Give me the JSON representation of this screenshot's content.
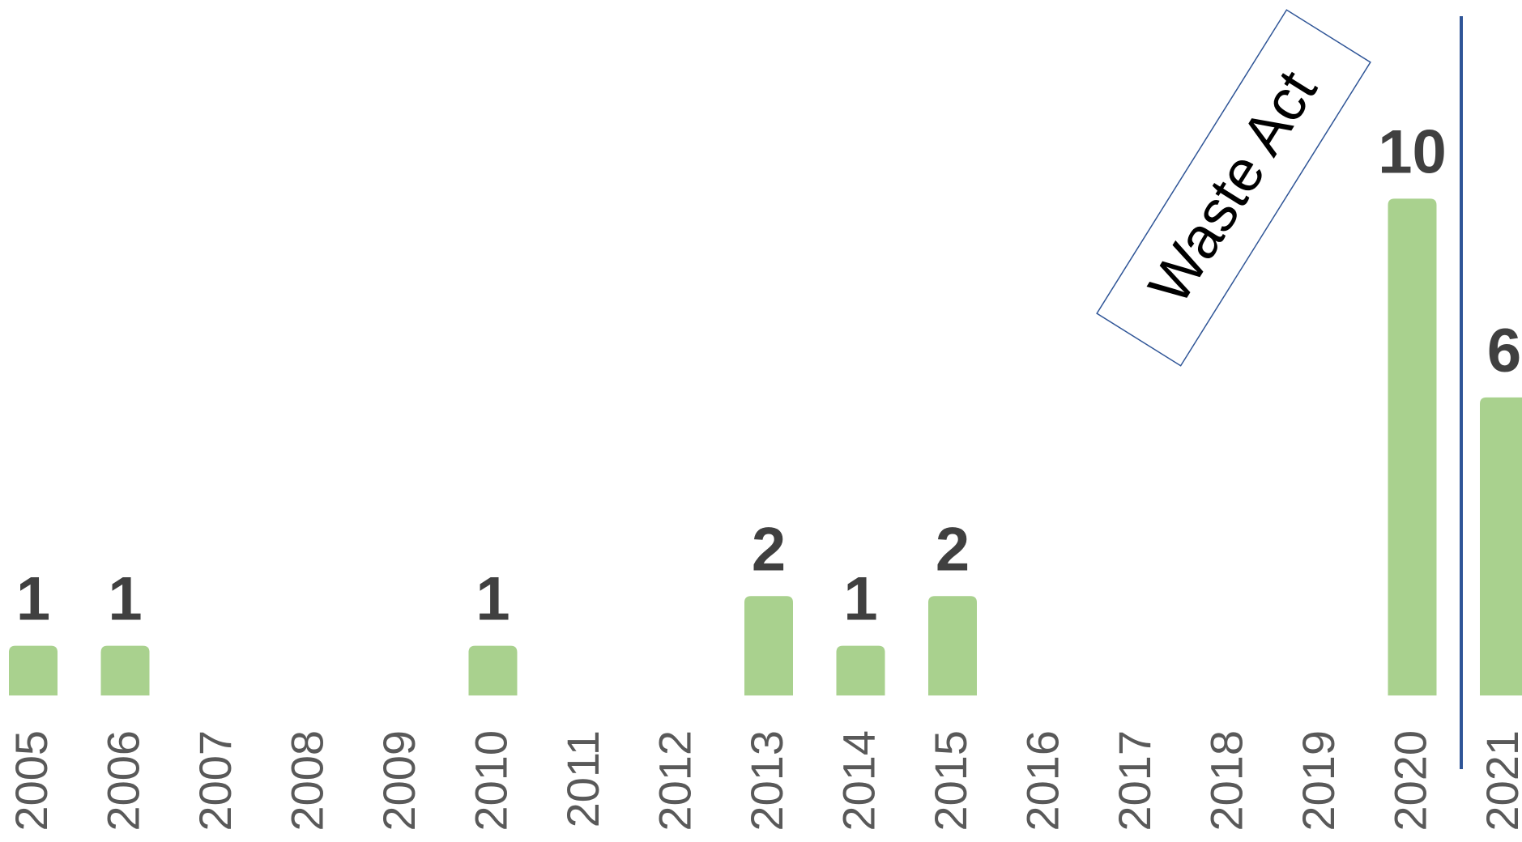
{
  "chart_data": {
    "type": "bar",
    "categories": [
      "2005",
      "2006",
      "2007",
      "2008",
      "2009",
      "2010",
      "2011",
      "2012",
      "2013",
      "2014",
      "2015",
      "2016",
      "2017",
      "2018",
      "2019",
      "2020",
      "2021"
    ],
    "values": [
      1,
      1,
      0,
      0,
      0,
      1,
      0,
      0,
      2,
      1,
      2,
      0,
      0,
      0,
      0,
      10,
      6
    ],
    "color": "#a9d18e",
    "ylim": [
      0,
      14
    ],
    "annotation": "Waste Act",
    "grid": false
  }
}
